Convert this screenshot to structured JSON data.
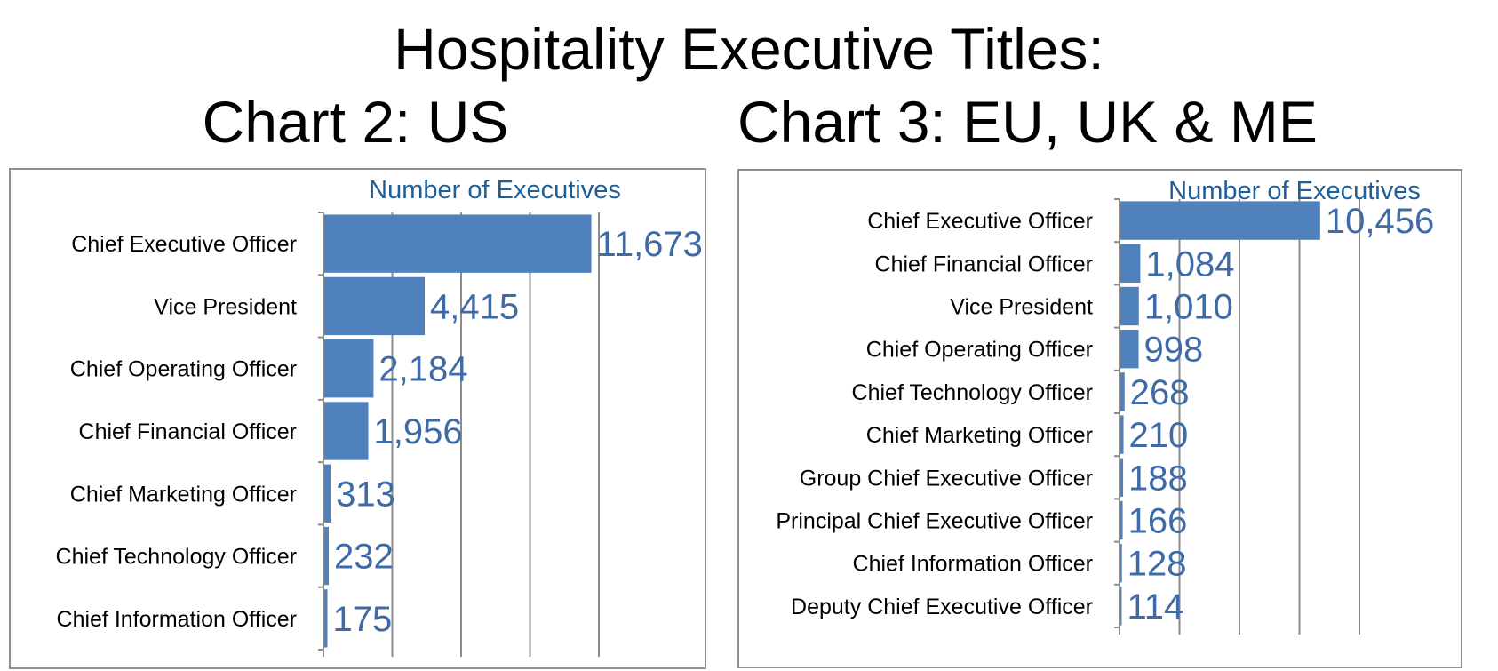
{
  "title": "Hospitality Executive Titles:",
  "chart_data": [
    {
      "type": "bar",
      "orientation": "horizontal",
      "title": "Chart 2: US",
      "xlabel": "Number of Executives",
      "ylabel": "",
      "xlim": [
        0,
        12000
      ],
      "grid": true,
      "categories": [
        "Chief Executive Officer",
        "Vice President",
        "Chief Operating Officer",
        "Chief Financial Officer",
        "Chief Marketing Officer",
        "Chief Technology Officer",
        "Chief Information Officer"
      ],
      "values": [
        11673,
        4415,
        2184,
        1956,
        313,
        232,
        175
      ],
      "data_labels": [
        "11,673",
        "4,415",
        "2,184",
        "1,956",
        "313",
        "232",
        "175"
      ],
      "colors": {
        "bar": "#4f81bd",
        "label": "#3e6aa7",
        "axis_title": "#1f5f96"
      }
    },
    {
      "type": "bar",
      "orientation": "horizontal",
      "title": "Chart 3: EU, UK & ME",
      "xlabel": "Number of Executives",
      "ylabel": "",
      "xlim": [
        0,
        12500
      ],
      "grid": true,
      "categories": [
        "Chief Executive Officer",
        "Chief Financial Officer",
        "Vice President",
        "Chief Operating Officer",
        "Chief Technology Officer",
        "Chief Marketing Officer",
        "Group Chief Executive Officer",
        "Principal Chief Executive Officer",
        "Chief Information Officer",
        "Deputy Chief Executive Officer"
      ],
      "values": [
        10456,
        1084,
        1010,
        998,
        268,
        210,
        188,
        166,
        128,
        114
      ],
      "data_labels": [
        "10,456",
        "1,084",
        "1,010",
        "998",
        "268",
        "210",
        "188",
        "166",
        "128",
        "114"
      ],
      "colors": {
        "bar": "#4f81bd",
        "label": "#3e6aa7",
        "axis_title": "#1f5f96"
      }
    }
  ]
}
